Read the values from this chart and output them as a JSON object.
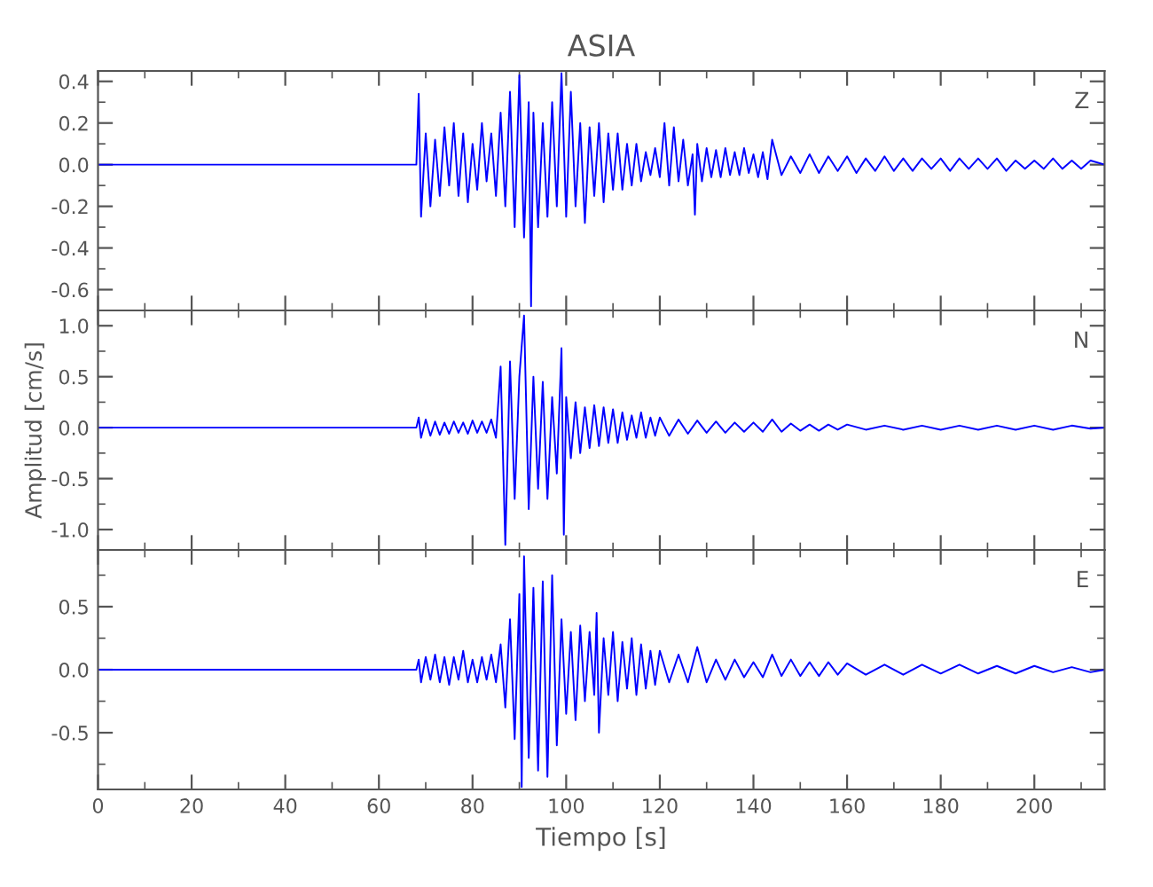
{
  "chart_data": [
    {
      "type": "line",
      "title": "ASIA",
      "annotations": [
        "Z"
      ],
      "tick_labels": "y",
      "grid": false,
      "xlim": [
        0,
        215
      ],
      "xticks": [
        0,
        20,
        40,
        60,
        80,
        100,
        120,
        140,
        160,
        180,
        200
      ],
      "ylim": [
        -0.7,
        0.45
      ],
      "yticks": [
        -0.6,
        -0.4,
        -0.2,
        {
          "value": 0,
          "label": "0.0"
        },
        0.2,
        0.4
      ],
      "series": [
        {
          "color": "#0000ff",
          "x": [
            0,
            68,
            68.5,
            69,
            70,
            71,
            72,
            73,
            74,
            75,
            76,
            77,
            78,
            79,
            80,
            81,
            82,
            83,
            84,
            85,
            86,
            87,
            88,
            89,
            90,
            91,
            92,
            92.5,
            93,
            94,
            95,
            96,
            97,
            98,
            99,
            100,
            101,
            102,
            103,
            104,
            105,
            106,
            107,
            108,
            109,
            110,
            111,
            112,
            113,
            114,
            115,
            116,
            117,
            118,
            119,
            120,
            121,
            122,
            123,
            124,
            125,
            126,
            127,
            127.5,
            128,
            129,
            130,
            131,
            132,
            133,
            134,
            135,
            136,
            137,
            138,
            139,
            140,
            141,
            142,
            143,
            144,
            146,
            148,
            150,
            152,
            154,
            156,
            158,
            160,
            162,
            164,
            166,
            168,
            170,
            172,
            174,
            176,
            178,
            180,
            182,
            184,
            186,
            188,
            190,
            192,
            194,
            196,
            198,
            200,
            202,
            204,
            206,
            208,
            210,
            212,
            215
          ],
          "values": [
            0,
            0,
            0.34,
            -0.25,
            0.15,
            -0.2,
            0.12,
            -0.15,
            0.18,
            -0.1,
            0.2,
            -0.15,
            0.15,
            -0.18,
            0.1,
            -0.12,
            0.2,
            -0.08,
            0.15,
            -0.15,
            0.25,
            -0.2,
            0.35,
            -0.3,
            0.43,
            -0.35,
            0.3,
            -0.68,
            0.25,
            -0.3,
            0.2,
            -0.25,
            0.3,
            -0.2,
            0.44,
            -0.25,
            0.35,
            -0.2,
            0.2,
            -0.28,
            0.18,
            -0.15,
            0.2,
            -0.18,
            0.15,
            -0.12,
            0.15,
            -0.12,
            0.1,
            -0.1,
            0.1,
            -0.08,
            0.06,
            -0.05,
            0.08,
            -0.06,
            0.2,
            -0.1,
            0.18,
            -0.08,
            0.12,
            -0.1,
            0.05,
            -0.24,
            0.1,
            -0.08,
            0.08,
            -0.06,
            0.07,
            -0.06,
            0.08,
            -0.05,
            0.06,
            -0.05,
            0.08,
            -0.04,
            0.05,
            -0.06,
            0.06,
            -0.07,
            0.12,
            -0.05,
            0.04,
            -0.04,
            0.05,
            -0.04,
            0.04,
            -0.03,
            0.04,
            -0.04,
            0.03,
            -0.03,
            0.04,
            -0.03,
            0.03,
            -0.03,
            0.03,
            -0.02,
            0.03,
            -0.03,
            0.03,
            -0.02,
            0.03,
            -0.02,
            0.03,
            -0.03,
            0.02,
            -0.02,
            0.02,
            -0.02,
            0.03,
            -0.02,
            0.02,
            -0.02,
            0.02,
            0
          ]
        }
      ]
    },
    {
      "type": "line",
      "ylabel": "Amplitud [cm/s]",
      "annotations": [
        "N"
      ],
      "tick_labels": "y",
      "grid": false,
      "xlim": [
        0,
        215
      ],
      "xticks": [
        0,
        20,
        40,
        60,
        80,
        100,
        120,
        140,
        160,
        180,
        200
      ],
      "ylim": [
        -1.2,
        1.15
      ],
      "yticks": [
        {
          "value": -1,
          "label": "-1.0"
        },
        -0.5,
        {
          "value": 0,
          "label": "0.0"
        },
        0.5,
        {
          "value": 1,
          "label": "1.0"
        }
      ],
      "series": [
        {
          "color": "#0000ff",
          "x": [
            0,
            68,
            68.5,
            69,
            70,
            71,
            72,
            73,
            74,
            75,
            76,
            77,
            78,
            79,
            80,
            81,
            82,
            83,
            84,
            85,
            86,
            87,
            88,
            89,
            90,
            91,
            92,
            93,
            94,
            95,
            96,
            97,
            98,
            99,
            99.5,
            100,
            101,
            102,
            103,
            104,
            105,
            106,
            107,
            108,
            109,
            110,
            111,
            112,
            113,
            114,
            115,
            116,
            117,
            118,
            119,
            120,
            122,
            124,
            126,
            128,
            130,
            132,
            134,
            136,
            138,
            140,
            142,
            144,
            146,
            148,
            150,
            152,
            154,
            156,
            158,
            160,
            164,
            168,
            172,
            176,
            180,
            184,
            188,
            192,
            196,
            200,
            204,
            208,
            212,
            215
          ],
          "values": [
            0,
            0,
            0.1,
            -0.1,
            0.08,
            -0.08,
            0.06,
            -0.07,
            0.05,
            -0.06,
            0.06,
            -0.05,
            0.05,
            -0.06,
            0.07,
            -0.05,
            0.06,
            -0.05,
            0.08,
            -0.1,
            0.6,
            -1.15,
            0.65,
            -0.7,
            0.5,
            1.1,
            -0.8,
            0.5,
            -0.6,
            0.45,
            -0.7,
            0.3,
            -0.45,
            0.78,
            -1.05,
            0.3,
            -0.3,
            0.25,
            -0.25,
            0.2,
            -0.2,
            0.22,
            -0.18,
            0.2,
            -0.15,
            0.18,
            -0.15,
            0.15,
            -0.12,
            0.12,
            -0.1,
            0.15,
            -0.1,
            0.1,
            -0.08,
            0.1,
            -0.08,
            0.08,
            -0.06,
            0.07,
            -0.05,
            0.06,
            -0.05,
            0.05,
            -0.04,
            0.05,
            -0.04,
            0.08,
            -0.04,
            0.04,
            -0.03,
            0.03,
            -0.03,
            0.03,
            -0.02,
            0.03,
            -0.02,
            0.02,
            -0.02,
            0.02,
            -0.02,
            0.02,
            -0.02,
            0.02,
            -0.02,
            0.02,
            -0.02,
            0.02,
            -0.01,
            0
          ]
        }
      ]
    },
    {
      "type": "line",
      "xlabel": "Tiempo [s]",
      "annotations": [
        "E"
      ],
      "grid": false,
      "xlim": [
        0,
        215
      ],
      "xticks": [
        0,
        20,
        40,
        60,
        80,
        100,
        120,
        140,
        160,
        180,
        200
      ],
      "ylim": [
        -0.95,
        0.95
      ],
      "yticks": [
        -0.5,
        {
          "value": 0,
          "label": "0.0"
        },
        0.5
      ],
      "series": [
        {
          "color": "#0000ff",
          "x": [
            0,
            68,
            68.5,
            69,
            70,
            71,
            72,
            73,
            74,
            75,
            76,
            77,
            78,
            79,
            80,
            81,
            82,
            83,
            84,
            85,
            86,
            87,
            88,
            89,
            90,
            90.5,
            91,
            92,
            93,
            94,
            95,
            96,
            97,
            98,
            99,
            100,
            101,
            102,
            103,
            104,
            105,
            106,
            106.5,
            107,
            108,
            109,
            110,
            111,
            112,
            113,
            114,
            115,
            116,
            117,
            118,
            119,
            120,
            122,
            124,
            126,
            128,
            130,
            132,
            134,
            136,
            138,
            140,
            142,
            144,
            146,
            148,
            150,
            152,
            154,
            156,
            158,
            160,
            164,
            168,
            172,
            176,
            180,
            184,
            188,
            192,
            196,
            200,
            204,
            208,
            212,
            215
          ],
          "values": [
            0,
            0,
            0.08,
            -0.1,
            0.1,
            -0.08,
            0.12,
            -0.1,
            0.1,
            -0.12,
            0.1,
            -0.08,
            0.15,
            -0.1,
            0.08,
            -0.1,
            0.1,
            -0.08,
            0.12,
            -0.1,
            0.2,
            -0.3,
            0.4,
            -0.55,
            0.6,
            -0.93,
            0.9,
            -0.7,
            0.65,
            -0.8,
            0.7,
            -0.85,
            0.75,
            -0.6,
            0.4,
            -0.35,
            0.3,
            -0.4,
            0.35,
            -0.25,
            0.3,
            -0.2,
            0.45,
            -0.5,
            0.25,
            -0.2,
            0.3,
            -0.25,
            0.22,
            -0.15,
            0.25,
            -0.2,
            0.2,
            -0.15,
            0.15,
            -0.12,
            0.15,
            -0.1,
            0.12,
            -0.1,
            0.18,
            -0.1,
            0.08,
            -0.08,
            0.08,
            -0.06,
            0.06,
            -0.06,
            0.12,
            -0.05,
            0.08,
            -0.05,
            0.06,
            -0.05,
            0.06,
            -0.04,
            0.05,
            -0.04,
            0.04,
            -0.04,
            0.04,
            -0.03,
            0.04,
            -0.03,
            0.03,
            -0.03,
            0.03,
            -0.02,
            0.02,
            -0.02,
            0
          ]
        }
      ]
    }
  ]
}
